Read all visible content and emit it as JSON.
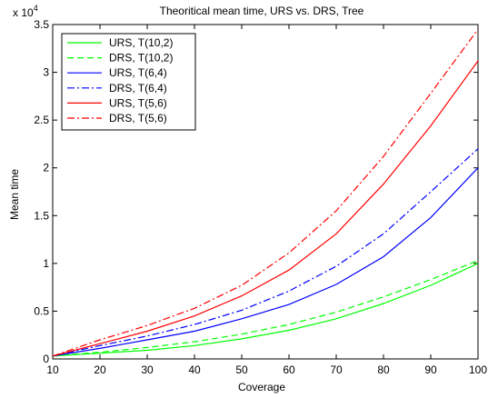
{
  "chart_data": {
    "type": "line",
    "title": "Theoritical mean time, URS vs. DRS, Tree",
    "xlabel": "Coverage",
    "ylabel": "Mean time",
    "y_multiplier_base": "x 10",
    "y_multiplier_exp": "4",
    "xlim": [
      10,
      100
    ],
    "ylim": [
      0,
      3.5
    ],
    "grid": false,
    "legend_position": "top-left",
    "x_ticks": [
      10,
      20,
      30,
      40,
      50,
      60,
      70,
      80,
      90,
      100
    ],
    "y_ticks": [
      0,
      0.5,
      1,
      1.5,
      2,
      2.5,
      3,
      3.5
    ],
    "x_tick_labels": [
      "10",
      "20",
      "30",
      "40",
      "50",
      "60",
      "70",
      "80",
      "90",
      "100"
    ],
    "y_tick_labels": [
      "0",
      "0.5",
      "1",
      "1.5",
      "2",
      "2.5",
      "3",
      "3.5"
    ],
    "x": [
      10,
      20,
      30,
      40,
      50,
      60,
      70,
      80,
      90,
      100
    ],
    "series": [
      {
        "name": "URS, T(10,2)",
        "color": "#00ff00",
        "dash": "solid",
        "values": [
          0.03,
          0.06,
          0.09,
          0.14,
          0.21,
          0.3,
          0.42,
          0.58,
          0.77,
          1.0
        ]
      },
      {
        "name": "DRS, T(10,2)",
        "color": "#00ff00",
        "dash": "dashed",
        "values": [
          0.03,
          0.07,
          0.12,
          0.18,
          0.26,
          0.36,
          0.49,
          0.65,
          0.83,
          1.03
        ]
      },
      {
        "name": "URS, T(6,4)",
        "color": "#0000ff",
        "dash": "solid",
        "values": [
          0.03,
          0.11,
          0.2,
          0.29,
          0.42,
          0.57,
          0.78,
          1.07,
          1.48,
          2.0
        ]
      },
      {
        "name": "DRS, T(6,4)",
        "color": "#0000ff",
        "dash": "dashdot",
        "values": [
          0.03,
          0.14,
          0.24,
          0.36,
          0.51,
          0.71,
          0.97,
          1.31,
          1.75,
          2.2
        ]
      },
      {
        "name": "URS, T(5,6)",
        "color": "#ff0000",
        "dash": "solid",
        "values": [
          0.03,
          0.16,
          0.29,
          0.45,
          0.66,
          0.93,
          1.31,
          1.83,
          2.44,
          3.12
        ]
      },
      {
        "name": "DRS, T(5,6)",
        "color": "#ff0000",
        "dash": "dashdot",
        "values": [
          0.03,
          0.2,
          0.35,
          0.53,
          0.77,
          1.11,
          1.55,
          2.12,
          2.78,
          3.45
        ]
      }
    ]
  }
}
